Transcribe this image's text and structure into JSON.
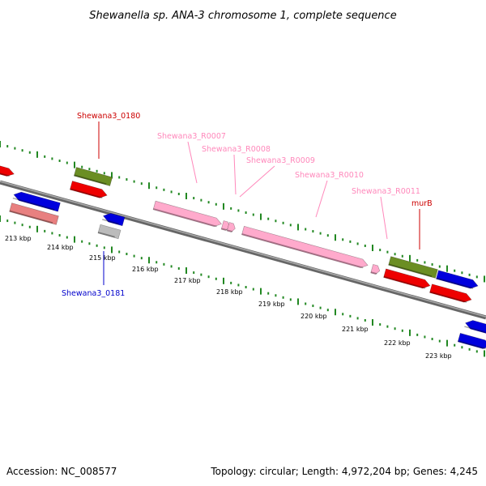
{
  "title": "Shewanella sp. ANA-3 chromosome 1, complete sequence",
  "footer": {
    "accession": "Accession: NC_008577",
    "summary": "Topology: circular; Length: 4,972,204 bp; Genes: 4,245"
  },
  "kbp_ticks": [
    "213 kbp",
    "214 kbp",
    "215 kbp",
    "216 kbp",
    "217 kbp",
    "218 kbp",
    "219 kbp",
    "220 kbp",
    "221 kbp",
    "222 kbp",
    "223 kbp"
  ],
  "gene_labels": [
    {
      "text": "Shewana3_0180",
      "color": "#cc0000"
    },
    {
      "text": "Shewana3_0181",
      "color": "#0000cc"
    },
    {
      "text": "Shewana3_R0007",
      "color": "#ff88bb"
    },
    {
      "text": "Shewana3_R0008",
      "color": "#ff88bb"
    },
    {
      "text": "Shewana3_R0009",
      "color": "#ff88bb"
    },
    {
      "text": "Shewana3_R0010",
      "color": "#ff88bb"
    },
    {
      "text": "Shewana3_R0011",
      "color": "#ff88bb"
    },
    {
      "text": "murB",
      "color": "#cc0000"
    }
  ],
  "colors": {
    "backbone": "#888888",
    "tick_track": "#228822",
    "cds_forward": "#ee0000",
    "cds_reverse": "#0000dd",
    "rrna": "#ffaacc",
    "highlight": "#6b8e23",
    "pseudo": "#e88080",
    "unknown": "#bbbbbb"
  }
}
